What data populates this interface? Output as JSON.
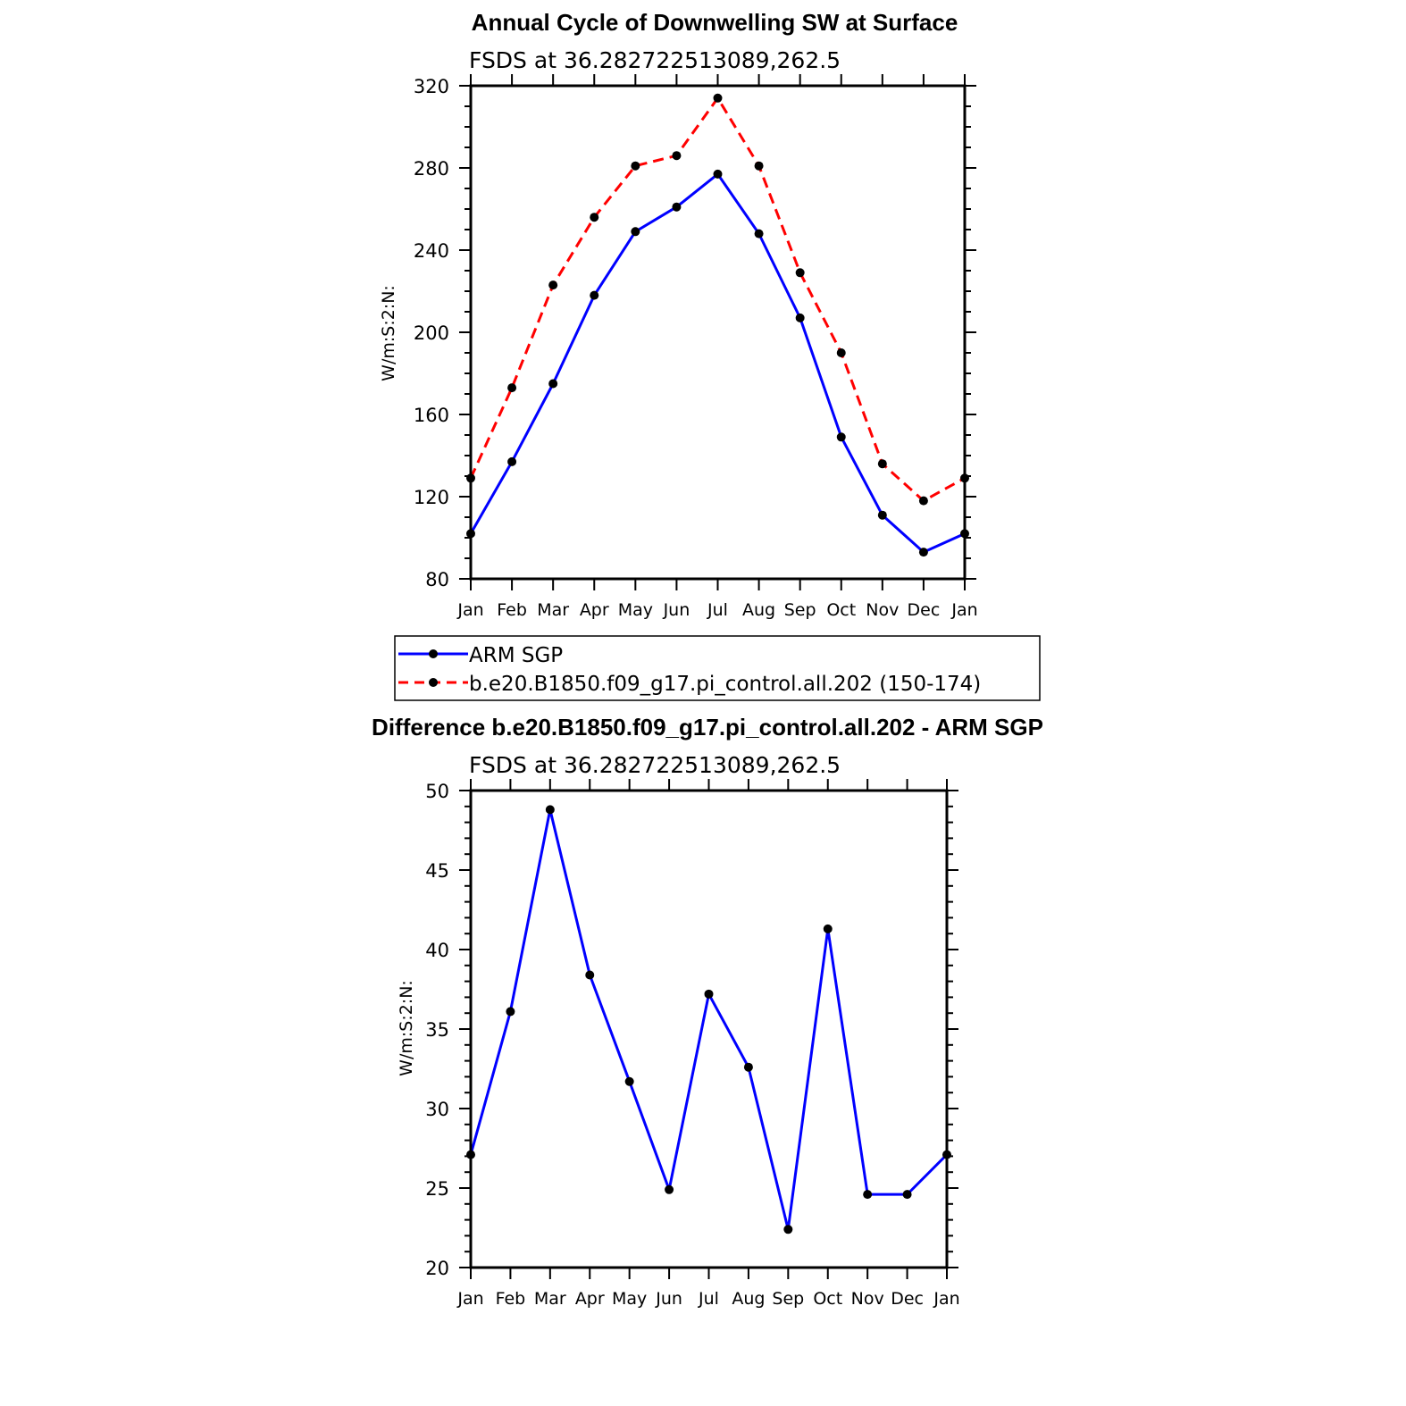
{
  "chart_data": [
    {
      "type": "line",
      "title": "Annual Cycle of Downwelling SW at Surface",
      "subtitle": "FSDS at 36.282722513089,262.5",
      "ylabel": "W/m:S:2:N:",
      "ylim": [
        80,
        320
      ],
      "yticks": [
        "80",
        "120",
        "160",
        "200",
        "240",
        "280",
        "320"
      ],
      "categories": [
        "Jan",
        "Feb",
        "Mar",
        "Apr",
        "May",
        "Jun",
        "Jul",
        "Aug",
        "Sep",
        "Oct",
        "Nov",
        "Dec",
        "Jan"
      ],
      "series": [
        {
          "name": "ARM SGP",
          "color": "#0000ff",
          "dash": "solid",
          "values": [
            102,
            137,
            175,
            218,
            249,
            261,
            277,
            248,
            207,
            149,
            111,
            93,
            102
          ]
        },
        {
          "name": "b.e20.B1850.f09_g17.pi_control.all.202 (150-174)",
          "color": "#ff0000",
          "dash": "dashed",
          "values": [
            129,
            173,
            223,
            256,
            281,
            286,
            314,
            281,
            229,
            190,
            136,
            118,
            129
          ]
        }
      ],
      "legend": "bottom"
    },
    {
      "type": "line",
      "title": "Difference b.e20.B1850.f09_g17.pi_control.all.202 - ARM SGP",
      "subtitle": "FSDS at 36.282722513089,262.5",
      "ylabel": "W/m:S:2:N:",
      "ylim": [
        20,
        50
      ],
      "yticks": [
        "20",
        "25",
        "30",
        "35",
        "40",
        "45",
        "50"
      ],
      "categories": [
        "Jan",
        "Feb",
        "Mar",
        "Apr",
        "May",
        "Jun",
        "Jul",
        "Aug",
        "Sep",
        "Oct",
        "Nov",
        "Dec",
        "Jan"
      ],
      "series": [
        {
          "color": "#0000ff",
          "dash": "solid",
          "values": [
            27.1,
            36.1,
            48.8,
            38.4,
            31.7,
            24.9,
            37.2,
            32.6,
            22.4,
            41.3,
            24.6,
            24.6,
            27.1
          ]
        }
      ]
    }
  ]
}
